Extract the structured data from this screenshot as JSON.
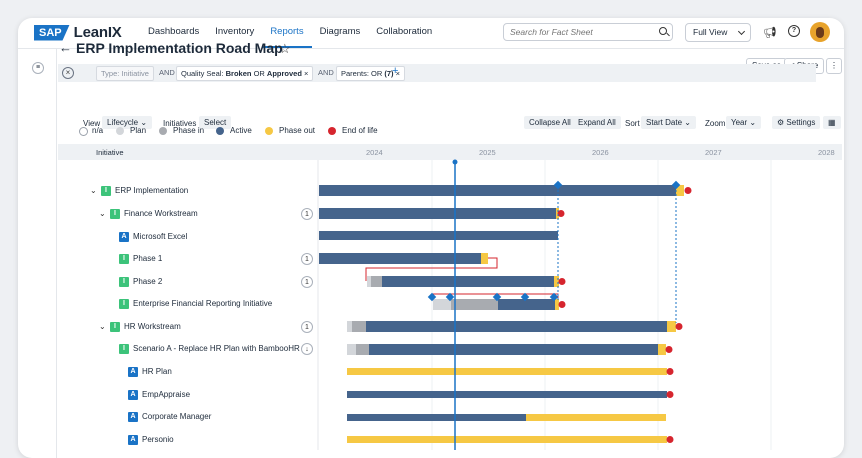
{
  "app": {
    "brand_sap": "SAP",
    "brand_name": "LeanIX"
  },
  "nav": {
    "items": [
      "Dashboards",
      "Inventory",
      "Reports",
      "Diagrams",
      "Collaboration"
    ],
    "active": "Reports"
  },
  "search": {
    "placeholder": "Search for Fact Sheet"
  },
  "view_mode": {
    "label": "Full View"
  },
  "page": {
    "title": "ERP Implementation Road Map",
    "save_as": "Save as",
    "share": "Share"
  },
  "filters": {
    "type_chip": "Type: Initiative",
    "and": "AND",
    "quality_prefix": "Quality Seal:",
    "quality_broken": "Broken",
    "quality_or": "OR",
    "quality_approved": "Approved",
    "parents_chip": "Parents: OR",
    "parents_count": "(7)",
    "remove": "×",
    "add": "+"
  },
  "toolbar": {
    "view_label": "View",
    "view_value": "Lifecycle",
    "initiatives_label": "Initiatives",
    "initiatives_value": "Select",
    "collapse_all": "Collapse All",
    "expand_all": "Expand All",
    "sort_label": "Sort",
    "sort_value": "Start Date",
    "zoom_label": "Zoom",
    "zoom_value": "Year",
    "settings": "Settings"
  },
  "legend": [
    {
      "label": "n/a",
      "color": "#ffffff"
    },
    {
      "label": "Plan",
      "color": "#d3d6da"
    },
    {
      "label": "Phase in",
      "color": "#a8abb0"
    },
    {
      "label": "Active",
      "color": "#45648c"
    },
    {
      "label": "Phase out",
      "color": "#f6c844"
    },
    {
      "label": "End of life",
      "color": "#d6252e"
    }
  ],
  "timeline": {
    "column_header": "Initiative",
    "years": [
      "2024",
      "2025",
      "2026",
      "2027",
      "2028"
    ]
  },
  "rows": [
    {
      "name": "ERP Implementation",
      "type": "I",
      "caret": true,
      "count": ""
    },
    {
      "name": "Finance Workstream",
      "type": "I",
      "caret": true,
      "count": "1"
    },
    {
      "name": "Microsoft Excel",
      "type": "A",
      "caret": false,
      "count": ""
    },
    {
      "name": "Phase 1",
      "type": "I",
      "caret": false,
      "count": "1"
    },
    {
      "name": "Phase 2",
      "type": "I",
      "caret": false,
      "count": "1"
    },
    {
      "name": "Enterprise Financial Reporting Initiative",
      "type": "I",
      "caret": false,
      "count": ""
    },
    {
      "name": "HR Workstream",
      "type": "I",
      "caret": true,
      "count": "1"
    },
    {
      "name": "Scenario A - Replace HR Plan with BambooHR",
      "type": "I",
      "caret": false,
      "count": "↓"
    },
    {
      "name": "HR Plan",
      "type": "A",
      "caret": false,
      "count": ""
    },
    {
      "name": "EmpAppraise",
      "type": "A",
      "caret": false,
      "count": ""
    },
    {
      "name": "Corporate Manager",
      "type": "A",
      "caret": false,
      "count": ""
    },
    {
      "name": "Personio",
      "type": "A",
      "caret": false,
      "count": ""
    }
  ]
}
